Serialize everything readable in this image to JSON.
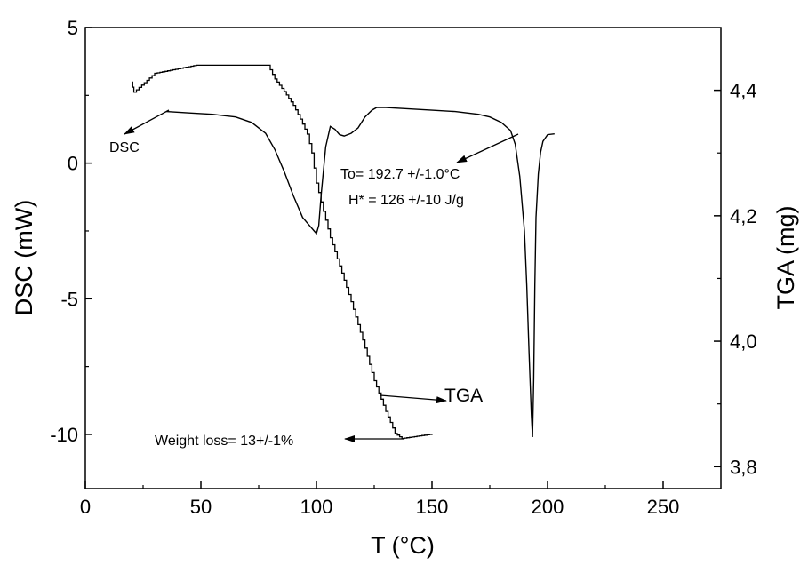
{
  "chart_data": {
    "type": "line",
    "title": "",
    "xlabel": "T (°C)",
    "ylabel_left": "DSC (mW)",
    "ylabel_right": "TGA (mg)",
    "xlim": [
      0,
      275
    ],
    "ylim_left": [
      -12,
      5
    ],
    "ylim_right": [
      3.765,
      4.5
    ],
    "x_ticks": [
      "0",
      "50",
      "100",
      "150",
      "200",
      "250"
    ],
    "x_tick_values": [
      0,
      50,
      100,
      150,
      200,
      250
    ],
    "y_left_ticks": [
      "5",
      "0",
      "-5",
      "-10"
    ],
    "y_left_tick_values": [
      5,
      0,
      -5,
      -10
    ],
    "y_right_ticks": [
      "4,4",
      "4,2",
      "4,0",
      "3,8"
    ],
    "y_right_tick_values": [
      4.4,
      4.2,
      4.0,
      3.8
    ],
    "grid": false,
    "series": [
      {
        "name": "DSC",
        "axis": "left",
        "x": [
          35,
          45,
          55,
          65,
          72,
          78,
          82,
          86,
          90,
          94,
          97,
          99,
          100,
          101,
          102,
          104,
          106,
          108,
          110,
          112,
          115,
          118,
          121,
          124,
          126,
          130,
          140,
          150,
          160,
          170,
          175,
          180,
          184,
          186,
          188,
          190,
          191,
          192,
          193,
          193.5,
          194,
          194.5,
          195,
          196,
          197,
          198,
          200,
          203
        ],
        "y": [
          1.9,
          1.85,
          1.8,
          1.7,
          1.5,
          1.1,
          0.5,
          -0.3,
          -1.2,
          -2.0,
          -2.3,
          -2.5,
          -2.6,
          -2.3,
          -1.2,
          0.6,
          1.35,
          1.25,
          1.05,
          1.0,
          1.1,
          1.3,
          1.7,
          1.95,
          2.05,
          2.05,
          2.0,
          1.95,
          1.9,
          1.8,
          1.7,
          1.5,
          1.2,
          0.7,
          -0.5,
          -2.5,
          -4.5,
          -7.0,
          -9.3,
          -10.1,
          -8.0,
          -4.5,
          -2.0,
          -0.4,
          0.4,
          0.8,
          1.05,
          1.08
        ]
      },
      {
        "name": "TGA",
        "axis": "right",
        "x": [
          20,
          20.5,
          21,
          30,
          48,
          79,
          82,
          86,
          90,
          93,
          96,
          98,
          100,
          103,
          106,
          110,
          115,
          120,
          125,
          130,
          134,
          137,
          150
        ],
        "y": [
          4.413,
          4.405,
          4.397,
          4.427,
          4.44,
          4.44,
          4.418,
          4.398,
          4.376,
          4.354,
          4.33,
          4.3,
          4.252,
          4.207,
          4.165,
          4.12,
          4.063,
          4.002,
          3.937,
          3.888,
          3.853,
          3.845,
          3.852
        ]
      }
    ],
    "annotations": [
      {
        "text": "DSC"
      },
      {
        "text": "To= 192.7 +/-1.0°C"
      },
      {
        "text": "H* = 126 +/-10 J/g"
      },
      {
        "text": "TGA"
      },
      {
        "text": "Weight loss= 13+/-1%"
      }
    ]
  }
}
